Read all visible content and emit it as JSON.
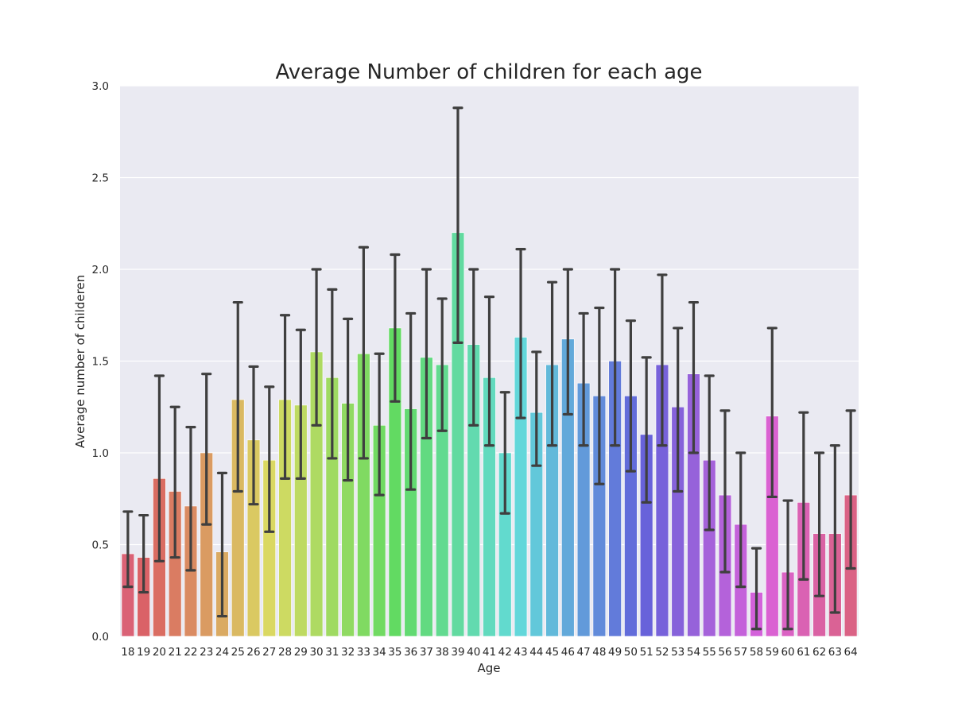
{
  "chart_data": {
    "type": "bar",
    "title": "Average Number of children for each age",
    "xlabel": "Age",
    "ylabel": "Average number of childeren",
    "categories": [
      "18",
      "19",
      "20",
      "21",
      "22",
      "23",
      "24",
      "25",
      "26",
      "27",
      "28",
      "29",
      "30",
      "31",
      "32",
      "33",
      "34",
      "35",
      "36",
      "37",
      "38",
      "39",
      "40",
      "41",
      "42",
      "43",
      "44",
      "45",
      "46",
      "47",
      "48",
      "49",
      "50",
      "51",
      "52",
      "53",
      "54",
      "55",
      "56",
      "57",
      "58",
      "59",
      "60",
      "61",
      "62",
      "63",
      "64"
    ],
    "values": [
      0.45,
      0.43,
      0.86,
      0.79,
      0.71,
      1.0,
      0.46,
      1.29,
      1.07,
      0.96,
      1.29,
      1.26,
      1.55,
      1.41,
      1.27,
      1.54,
      1.15,
      1.68,
      1.24,
      1.52,
      1.48,
      2.2,
      1.59,
      1.41,
      1.0,
      1.63,
      1.22,
      1.48,
      1.62,
      1.38,
      1.31,
      1.5,
      1.31,
      1.1,
      1.48,
      1.25,
      1.43,
      0.96,
      0.77,
      0.61,
      0.24,
      1.2,
      0.35,
      0.73,
      0.56,
      0.56,
      0.77
    ],
    "error_low": [
      0.27,
      0.24,
      0.41,
      0.43,
      0.36,
      0.61,
      0.11,
      0.79,
      0.72,
      0.57,
      0.86,
      0.86,
      1.15,
      0.97,
      0.85,
      0.97,
      0.77,
      1.28,
      0.8,
      1.08,
      1.12,
      1.6,
      1.15,
      1.04,
      0.67,
      1.19,
      0.93,
      1.04,
      1.21,
      1.04,
      0.83,
      1.04,
      0.9,
      0.73,
      1.04,
      0.79,
      1.0,
      0.58,
      0.35,
      0.27,
      0.04,
      0.76,
      0.04,
      0.31,
      0.22,
      0.13,
      0.37
    ],
    "error_high": [
      0.68,
      0.66,
      1.42,
      1.25,
      1.14,
      1.43,
      0.89,
      1.82,
      1.47,
      1.36,
      1.75,
      1.67,
      2.0,
      1.89,
      1.73,
      2.12,
      1.54,
      2.08,
      1.76,
      2.0,
      1.84,
      2.88,
      2.0,
      1.85,
      1.33,
      2.11,
      1.55,
      1.93,
      2.0,
      1.76,
      1.79,
      2.0,
      1.72,
      1.52,
      1.97,
      1.68,
      1.82,
      1.42,
      1.23,
      1.0,
      0.48,
      1.68,
      0.74,
      1.22,
      1.0,
      1.04,
      1.23
    ],
    "ylim": [
      0,
      3.0
    ],
    "yticks": [
      "0.0",
      "0.5",
      "1.0",
      "1.5",
      "2.0",
      "2.5",
      "3.0"
    ],
    "grid": true,
    "colors": {
      "plot_background": "#eaeaf2",
      "grid": "#ffffff",
      "error_bar": "#3f3f3f",
      "bar_palette_start_hue": 350
    }
  }
}
